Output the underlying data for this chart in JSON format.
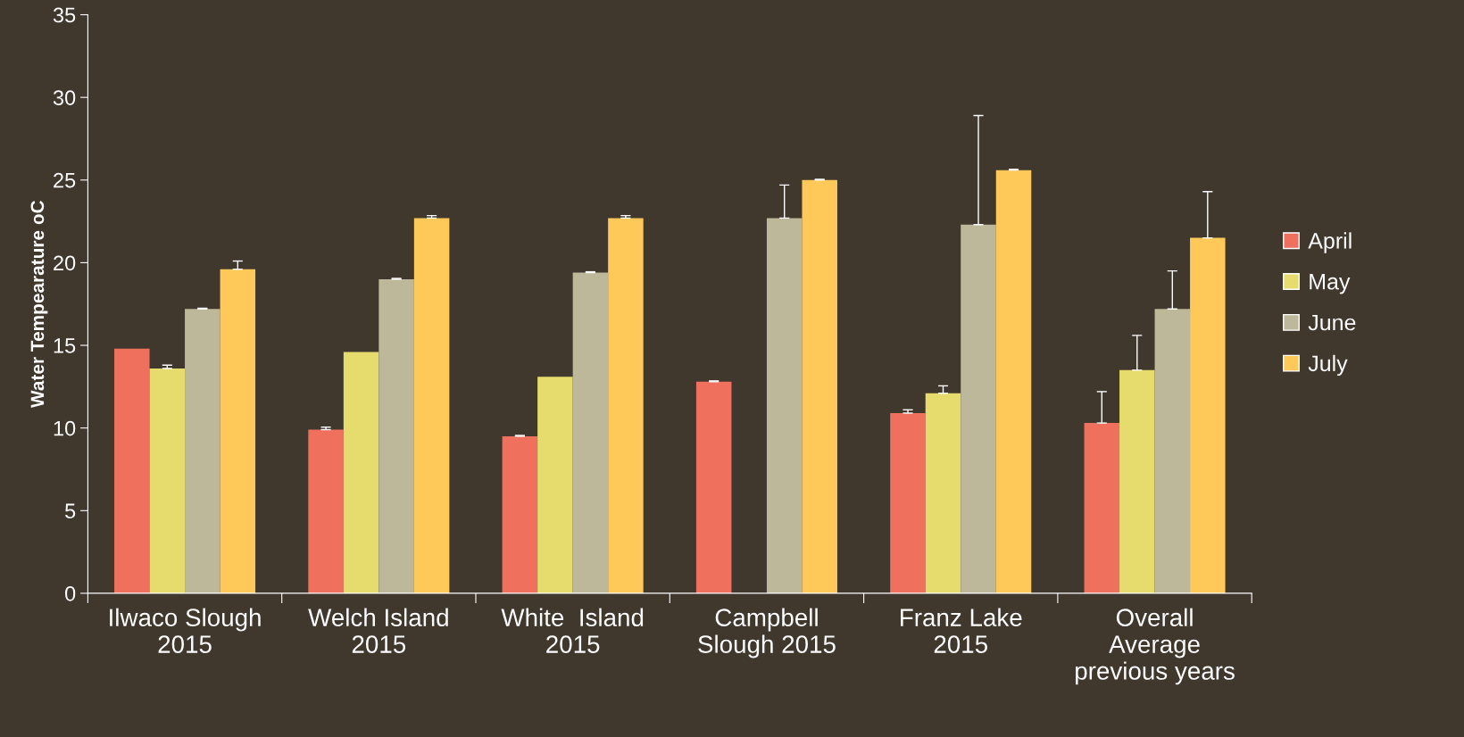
{
  "chart_data": {
    "type": "bar",
    "ylabel": "Water Tempearature oC",
    "categories": [
      "Ilwaco Slough\n2015",
      "Welch Island\n2015",
      "White  Island\n2015",
      "Campbell\nSlough 2015",
      "Franz Lake\n2015",
      "Overall\nAverage\nprevious years"
    ],
    "series": [
      {
        "name": "April",
        "color": "#f0705e",
        "values": [
          14.8,
          9.9,
          9.5,
          12.8,
          10.9,
          10.3
        ],
        "errors": [
          null,
          [
            9.9,
            10.05
          ],
          [
            9.5,
            9.55
          ],
          [
            12.8,
            12.85
          ],
          [
            10.9,
            11.1
          ],
          [
            10.3,
            12.2
          ]
        ]
      },
      {
        "name": "May",
        "color": "#e6dc6e",
        "values": [
          13.6,
          14.6,
          13.1,
          null,
          12.1,
          13.5
        ],
        "errors": [
          [
            13.6,
            13.8
          ],
          null,
          null,
          null,
          [
            12.1,
            12.55
          ],
          [
            13.5,
            15.6
          ]
        ]
      },
      {
        "name": "June",
        "color": "#bdb89a",
        "values": [
          17.2,
          19.0,
          19.4,
          22.7,
          22.3,
          17.2
        ],
        "errors": [
          [
            17.2,
            17.25
          ],
          [
            19.0,
            19.05
          ],
          [
            19.4,
            19.45
          ],
          [
            22.7,
            24.7
          ],
          [
            22.3,
            28.9
          ],
          [
            17.2,
            19.5
          ]
        ]
      },
      {
        "name": "July",
        "color": "#ffc95a",
        "values": [
          19.6,
          22.7,
          22.7,
          25.0,
          25.6,
          21.5
        ],
        "errors": [
          [
            19.6,
            20.1
          ],
          [
            22.7,
            22.85
          ],
          [
            22.7,
            22.85
          ],
          [
            25.0,
            25.05
          ],
          [
            25.6,
            25.65
          ],
          [
            21.5,
            24.3
          ]
        ]
      }
    ],
    "ylim": [
      0,
      35
    ],
    "yticks": [
      0,
      5,
      10,
      15,
      20,
      25,
      30,
      35
    ],
    "grid": false,
    "legend": "right"
  }
}
